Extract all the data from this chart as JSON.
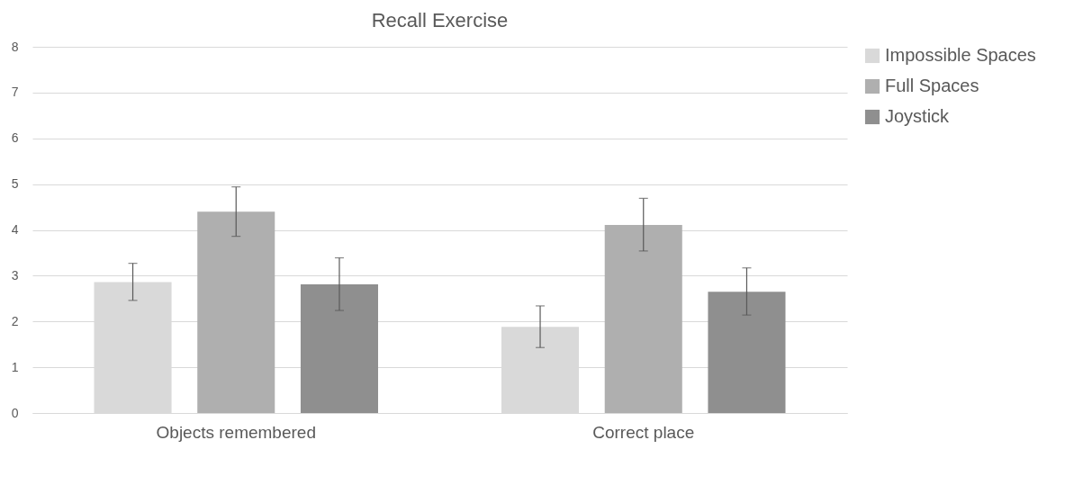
{
  "chart_data": {
    "type": "bar",
    "title": "Recall Exercise",
    "categories": [
      "Objects remembered",
      "Correct place"
    ],
    "series": [
      {
        "name": "Impossible Spaces",
        "color": "#d9d9d9",
        "values": [
          2.86,
          1.88
        ],
        "errors": [
          [
            2.46,
            3.27
          ],
          [
            1.43,
            2.34
          ]
        ]
      },
      {
        "name": "Full Spaces",
        "color": "#afafaf",
        "values": [
          4.4,
          4.11
        ],
        "errors": [
          [
            3.86,
            4.94
          ],
          [
            3.54,
            4.69
          ]
        ]
      },
      {
        "name": "Joystick",
        "color": "#8f8f8f",
        "values": [
          2.81,
          2.65
        ],
        "errors": [
          [
            2.24,
            3.39
          ],
          [
            2.14,
            3.17
          ]
        ]
      }
    ],
    "ylim": [
      0,
      8
    ],
    "yticks": [
      0,
      1,
      2,
      3,
      4,
      5,
      6,
      7,
      8
    ],
    "grid": "y",
    "legend": "right"
  }
}
